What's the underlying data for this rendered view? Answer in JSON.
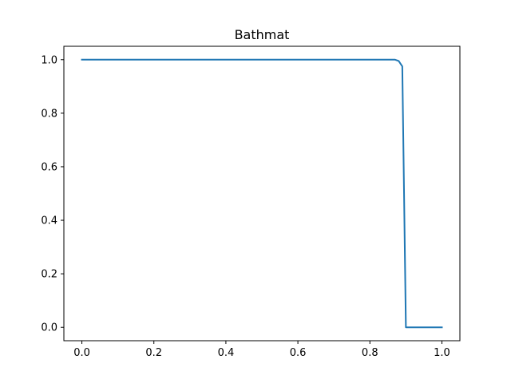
{
  "chart_data": {
    "type": "line",
    "title": "Bathmat",
    "xlabel": "",
    "ylabel": "",
    "xlim": [
      -0.05,
      1.05
    ],
    "ylim": [
      -0.05,
      1.05
    ],
    "xticks": [
      0.0,
      0.2,
      0.4,
      0.6,
      0.8,
      1.0
    ],
    "xtick_labels": [
      "0.0",
      "0.2",
      "0.4",
      "0.6",
      "0.8",
      "1.0"
    ],
    "yticks": [
      0.0,
      0.2,
      0.4,
      0.6,
      0.8,
      1.0
    ],
    "ytick_labels": [
      "0.0",
      "0.2",
      "0.4",
      "0.6",
      "0.8",
      "1.0"
    ],
    "grid": false,
    "series": [
      {
        "color": "#1f77b4",
        "x": [
          0.0,
          0.85,
          0.87,
          0.88,
          0.89,
          0.9,
          0.9,
          1.0
        ],
        "y": [
          1.0,
          1.0,
          1.0,
          0.995,
          0.975,
          0.0,
          0.0,
          0.0
        ]
      }
    ]
  }
}
